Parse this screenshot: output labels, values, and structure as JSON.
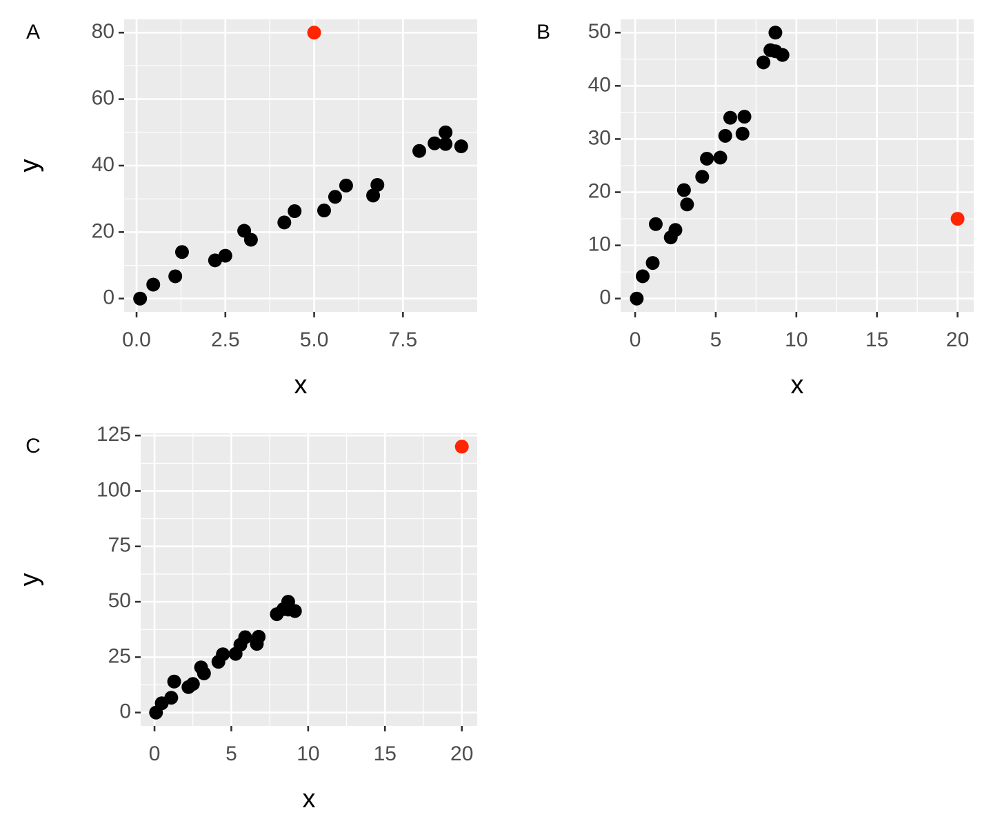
{
  "chart_data": [
    {
      "type": "scatter",
      "tag": "A",
      "x_label": "x",
      "y_label": "y",
      "series": [
        {
          "color": "#000000",
          "x": [
            0.1,
            0.47,
            1.09,
            1.28,
            2.21,
            2.5,
            3.03,
            3.22,
            4.16,
            4.45,
            5.28,
            5.59,
            5.9,
            6.66,
            6.78,
            7.96,
            8.39,
            8.7,
            8.7,
            9.14
          ],
          "values": [
            0,
            4.2,
            6.7,
            14,
            11.5,
            12.9,
            20.4,
            17.7,
            22.9,
            26.3,
            26.5,
            30.6,
            34,
            31,
            34.2,
            44.4,
            46.7,
            50,
            46.5,
            45.8
          ]
        },
        {
          "color": "#ff2500",
          "x": [
            5
          ],
          "values": [
            80
          ]
        }
      ],
      "xlim": [
        -0.35,
        9.59
      ],
      "ylim": [
        -4,
        84
      ],
      "xticks": [
        {
          "value": 0,
          "label": "0.0"
        },
        2.5,
        {
          "value": 5,
          "label": "5.0"
        },
        7.5
      ],
      "yticks": [
        0,
        20,
        40,
        60,
        80
      ],
      "grid": true
    },
    {
      "type": "scatter",
      "tag": "B",
      "x_label": "x",
      "y_label": "y",
      "series": [
        {
          "color": "#000000",
          "x": [
            0.1,
            0.47,
            1.09,
            1.28,
            2.21,
            2.5,
            3.03,
            3.22,
            4.16,
            4.45,
            5.28,
            5.59,
            5.9,
            6.66,
            6.78,
            7.96,
            8.39,
            8.7,
            8.7,
            9.14
          ],
          "values": [
            0,
            4.2,
            6.7,
            14,
            11.5,
            12.9,
            20.4,
            17.7,
            22.9,
            26.3,
            26.5,
            30.6,
            34,
            31,
            34.2,
            44.4,
            46.7,
            50,
            46.5,
            45.8
          ]
        },
        {
          "color": "#ff2500",
          "x": [
            20
          ],
          "values": [
            15
          ]
        }
      ],
      "xlim": [
        -0.9,
        21
      ],
      "ylim": [
        -2.5,
        52.5
      ],
      "xticks": [
        0,
        5,
        10,
        15,
        20
      ],
      "yticks": [
        0,
        10,
        20,
        30,
        40,
        50
      ],
      "grid": true
    },
    {
      "type": "scatter",
      "tag": "C",
      "x_label": "x",
      "y_label": "y",
      "series": [
        {
          "color": "#000000",
          "x": [
            0.1,
            0.47,
            1.09,
            1.28,
            2.21,
            2.5,
            3.03,
            3.22,
            4.16,
            4.45,
            5.28,
            5.59,
            5.9,
            6.66,
            6.78,
            7.96,
            8.39,
            8.7,
            8.7,
            9.14
          ],
          "values": [
            0,
            4.2,
            6.7,
            14,
            11.5,
            12.9,
            20.4,
            17.7,
            22.9,
            26.3,
            26.5,
            30.6,
            34,
            31,
            34.2,
            44.4,
            46.7,
            50,
            46.5,
            45.8
          ]
        },
        {
          "color": "#ff2500",
          "x": [
            20
          ],
          "values": [
            120
          ]
        }
      ],
      "xlim": [
        -0.9,
        21
      ],
      "ylim": [
        -6,
        126
      ],
      "xticks": [
        0,
        5,
        10,
        15,
        20
      ],
      "yticks": [
        0,
        25,
        50,
        75,
        100,
        125
      ],
      "grid": true
    }
  ]
}
